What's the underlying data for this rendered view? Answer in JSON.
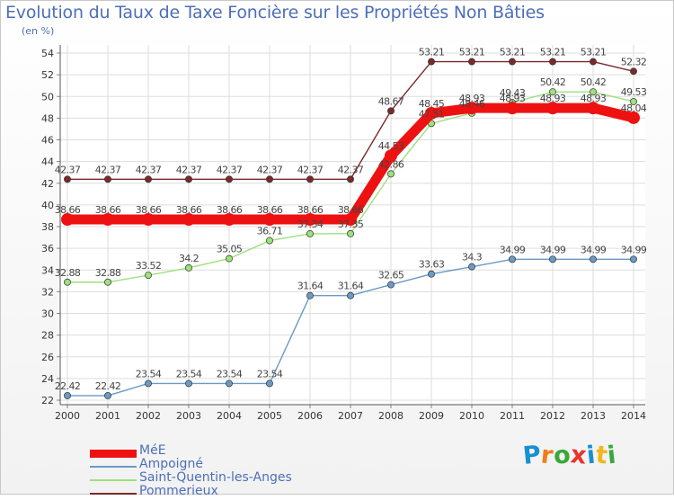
{
  "title": "Evolution du Taux de Taxe Foncière sur les Propriétés Non Bâties",
  "subtitle": "(en %)",
  "logo": {
    "text": "Proxiti",
    "letters": [
      "P",
      "r",
      "o",
      "x",
      "i",
      "t",
      "i"
    ],
    "colors": [
      "#1a8fd0",
      "#f07c1a",
      "#38a838",
      "#e8342a",
      "#1a8fd0",
      "#f0b81a",
      "#38a838"
    ]
  },
  "chart_data": {
    "type": "line",
    "title": "Evolution du Taux de Taxe Foncière sur les Propriétés Non Bâties",
    "ylabel": "(en %)",
    "xlabel": "",
    "ylim": [
      22,
      54
    ],
    "yticks": [
      22,
      24,
      26,
      28,
      30,
      32,
      34,
      36,
      38,
      40,
      42,
      44,
      46,
      48,
      50,
      52,
      54
    ],
    "grid": true,
    "legend_position": "bottom-left",
    "x": [
      "2000",
      "2001",
      "2002",
      "2003",
      "2004",
      "2005",
      "2006",
      "2007",
      "2008",
      "2009",
      "2010",
      "2011",
      "2012",
      "2013",
      "2014"
    ],
    "series": [
      {
        "name": "Pommerieux",
        "color": "#7a2a2a",
        "labels": [
          "42.37",
          "42.37",
          "42.37",
          "42.37",
          "42.37",
          "42.37",
          "42.37",
          "42.37",
          "48.67",
          "53.21",
          "53.21",
          "53.21",
          "53.21",
          "53.21",
          "52.32"
        ],
        "values": [
          42.37,
          42.37,
          42.37,
          42.37,
          42.37,
          42.37,
          42.37,
          42.37,
          48.67,
          53.21,
          53.21,
          53.21,
          53.21,
          53.21,
          52.32
        ],
        "thick": false
      },
      {
        "name": "Saint-Quentin-les-Anges",
        "color": "#9de07c",
        "labels": [
          "32.88",
          "32.88",
          "33.52",
          "34.2",
          "35.05",
          "36.71",
          "37.34",
          "37.35",
          "42.86",
          "47.51",
          "48.46",
          "49.43",
          "50.42",
          "50.42",
          "49.53"
        ],
        "values": [
          32.88,
          32.88,
          33.52,
          34.2,
          35.05,
          36.71,
          37.34,
          37.35,
          42.86,
          47.51,
          48.46,
          49.43,
          50.42,
          50.42,
          49.53
        ],
        "thick": false
      },
      {
        "name": "Ampoigné",
        "color": "#6b9ac4",
        "labels": [
          "22.42",
          "22.42",
          "23.54",
          "23.54",
          "23.54",
          "23.54",
          "31.64",
          "31.64",
          "32.65",
          "33.63",
          "34.3",
          "34.99",
          "34.99",
          "34.99",
          "34.99"
        ],
        "values": [
          22.42,
          22.42,
          23.54,
          23.54,
          23.54,
          23.54,
          31.64,
          31.64,
          32.65,
          33.63,
          34.3,
          34.99,
          34.99,
          34.99,
          34.99
        ],
        "thick": false
      },
      {
        "name": "MéE",
        "color": "#ee1111",
        "labels": [
          "38.66",
          "38.66",
          "38.66",
          "38.66",
          "38.66",
          "38.66",
          "38.66",
          "38.66",
          "44.53",
          "48.45",
          "48.93",
          "48.93",
          "48.93",
          "48.93",
          "48.04"
        ],
        "values": [
          38.66,
          38.66,
          38.66,
          38.66,
          38.66,
          38.66,
          38.66,
          38.66,
          44.53,
          48.45,
          48.93,
          48.93,
          48.93,
          48.93,
          48.04
        ],
        "thick": true
      }
    ],
    "legend": [
      "MéE",
      "Ampoigné",
      "Saint-Quentin-les-Anges",
      "Pommerieux"
    ]
  }
}
